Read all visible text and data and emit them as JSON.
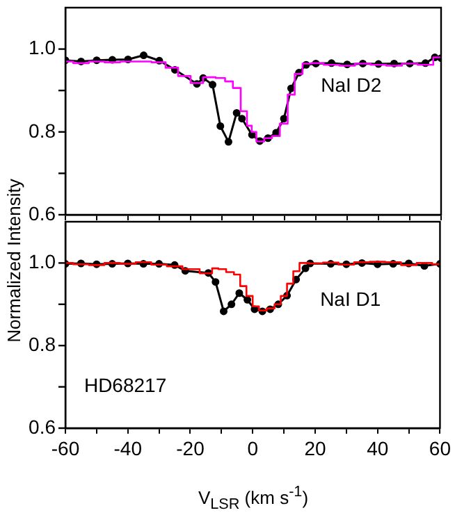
{
  "chart_data": [
    {
      "type": "line",
      "ylabel": "Normalized Intensity",
      "annotations": [
        "NaI D2"
      ],
      "xlim": [
        -60,
        60
      ],
      "xticks": [
        -60,
        -50,
        -40,
        -30,
        -20,
        -10,
        0,
        10,
        20,
        30,
        40,
        50,
        60
      ],
      "ylim": [
        0.6,
        1.1
      ],
      "yticks": [
        {
          "value": 0.6,
          "label": "0.6"
        },
        {
          "value": 0.7,
          "label": null
        },
        {
          "value": 0.8,
          "label": "0.8"
        },
        {
          "value": 0.9,
          "label": null
        },
        {
          "value": 1.0,
          "label": "1.0"
        }
      ],
      "tick_labels": "y",
      "legend": false,
      "grid": false,
      "series": [
        {
          "type": "step",
          "color": "#ff00ff",
          "marker": "none",
          "x": [
            -60,
            -55,
            -50,
            -45,
            -40,
            -35,
            -30,
            -26,
            -22,
            -18,
            -14,
            -10,
            -8,
            -5,
            -3,
            -1,
            0,
            2,
            5,
            7,
            10,
            12,
            14.5,
            17,
            20,
            25,
            30,
            35,
            40,
            45,
            50,
            55,
            60
          ],
          "values": [
            0.97,
            0.966,
            0.97,
            0.968,
            0.97,
            0.97,
            0.968,
            0.955,
            0.935,
            0.918,
            0.932,
            0.93,
            0.922,
            0.906,
            0.85,
            0.815,
            0.8,
            0.777,
            0.785,
            0.79,
            0.82,
            0.89,
            0.94,
            0.965,
            0.966,
            0.962,
            0.96,
            0.965,
            0.962,
            0.96,
            0.965,
            0.962,
            0.98
          ]
        },
        {
          "type": "line",
          "color": "#000000",
          "marker": "circle",
          "x": [
            -60,
            -55,
            -50,
            -45,
            -40,
            -35,
            -30,
            -25,
            -18,
            -16,
            -13,
            -10.5,
            -7.9,
            -5.3,
            -3.6,
            -0.4,
            2.1,
            4.7,
            7.3,
            9.8,
            12.1,
            14.6,
            16.9,
            20,
            25,
            30,
            35,
            40,
            45,
            50,
            55,
            58,
            60
          ],
          "values": [
            0.973,
            0.97,
            0.973,
            0.974,
            0.975,
            0.985,
            0.972,
            0.95,
            0.916,
            0.93,
            0.914,
            0.814,
            0.776,
            0.846,
            0.832,
            0.793,
            0.778,
            0.785,
            0.798,
            0.832,
            0.905,
            0.943,
            0.962,
            0.965,
            0.966,
            0.963,
            0.965,
            0.964,
            0.965,
            0.965,
            0.966,
            0.98,
            0.978
          ]
        }
      ]
    },
    {
      "type": "line",
      "xlabel": "V$_{LSR}$ (km s$^{-1}$)",
      "annotations": [
        "NaI D1",
        "HD68217"
      ],
      "xlim": [
        -60,
        60
      ],
      "xticks": [
        -60,
        {
          "value": -50,
          "label": null
        },
        -40,
        {
          "value": -30,
          "label": null
        },
        -20,
        {
          "value": -10,
          "label": null
        },
        0,
        {
          "value": 10,
          "label": null
        },
        20,
        {
          "value": 30,
          "label": null
        },
        40,
        {
          "value": 50,
          "label": null
        },
        60
      ],
      "ylim": [
        0.6,
        1.1
      ],
      "yticks": [
        {
          "value": 0.6,
          "label": "0.6"
        },
        {
          "value": 0.7,
          "label": null
        },
        {
          "value": 0.8,
          "label": "0.8"
        },
        {
          "value": 0.9,
          "label": null
        },
        {
          "value": 1.0,
          "label": "1.0"
        }
      ],
      "legend": false,
      "grid": false,
      "series": [
        {
          "type": "step",
          "color": "#ff0000",
          "marker": "none",
          "x": [
            -60,
            -55,
            -50,
            -45,
            -40,
            -35,
            -30,
            -25,
            -20,
            -14,
            -12,
            -10,
            -7,
            -5,
            -3,
            -1,
            1,
            3,
            6,
            8,
            10,
            12,
            14,
            16,
            20,
            25,
            30,
            35,
            40,
            45,
            50,
            55,
            60
          ],
          "values": [
            1.0,
            0.997,
            0.995,
            1.0,
            0.998,
            1.002,
            0.996,
            0.992,
            0.985,
            0.975,
            0.987,
            0.985,
            0.978,
            0.972,
            0.944,
            0.92,
            0.895,
            0.885,
            0.89,
            0.9,
            0.92,
            0.95,
            0.98,
            1.0,
            0.999,
            1.001,
            0.996,
            1.002,
            1.003,
            1.002,
            0.995,
            1.0,
            0.997
          ]
        },
        {
          "type": "line",
          "color": "#000000",
          "marker": "circle",
          "x": [
            -60,
            -55,
            -50,
            -45,
            -40,
            -35,
            -30,
            -25,
            -21.6,
            -14.2,
            -11.9,
            -9.3,
            -6.8,
            -4.3,
            -1.7,
            0.6,
            3.1,
            5.6,
            8.2,
            11,
            13.9,
            16.9,
            18.4,
            25,
            30,
            35,
            40,
            45,
            50,
            55,
            60
          ],
          "values": [
            0.998,
            0.999,
            0.997,
            0.998,
            0.999,
            0.998,
            0.998,
            0.995,
            0.981,
            0.976,
            0.954,
            0.883,
            0.9,
            0.927,
            0.911,
            0.888,
            0.883,
            0.888,
            0.9,
            0.921,
            0.96,
            0.987,
            0.999,
            0.998,
            0.997,
            1.0,
            0.997,
            0.998,
            0.999,
            0.993,
            0.998
          ]
        }
      ]
    }
  ]
}
